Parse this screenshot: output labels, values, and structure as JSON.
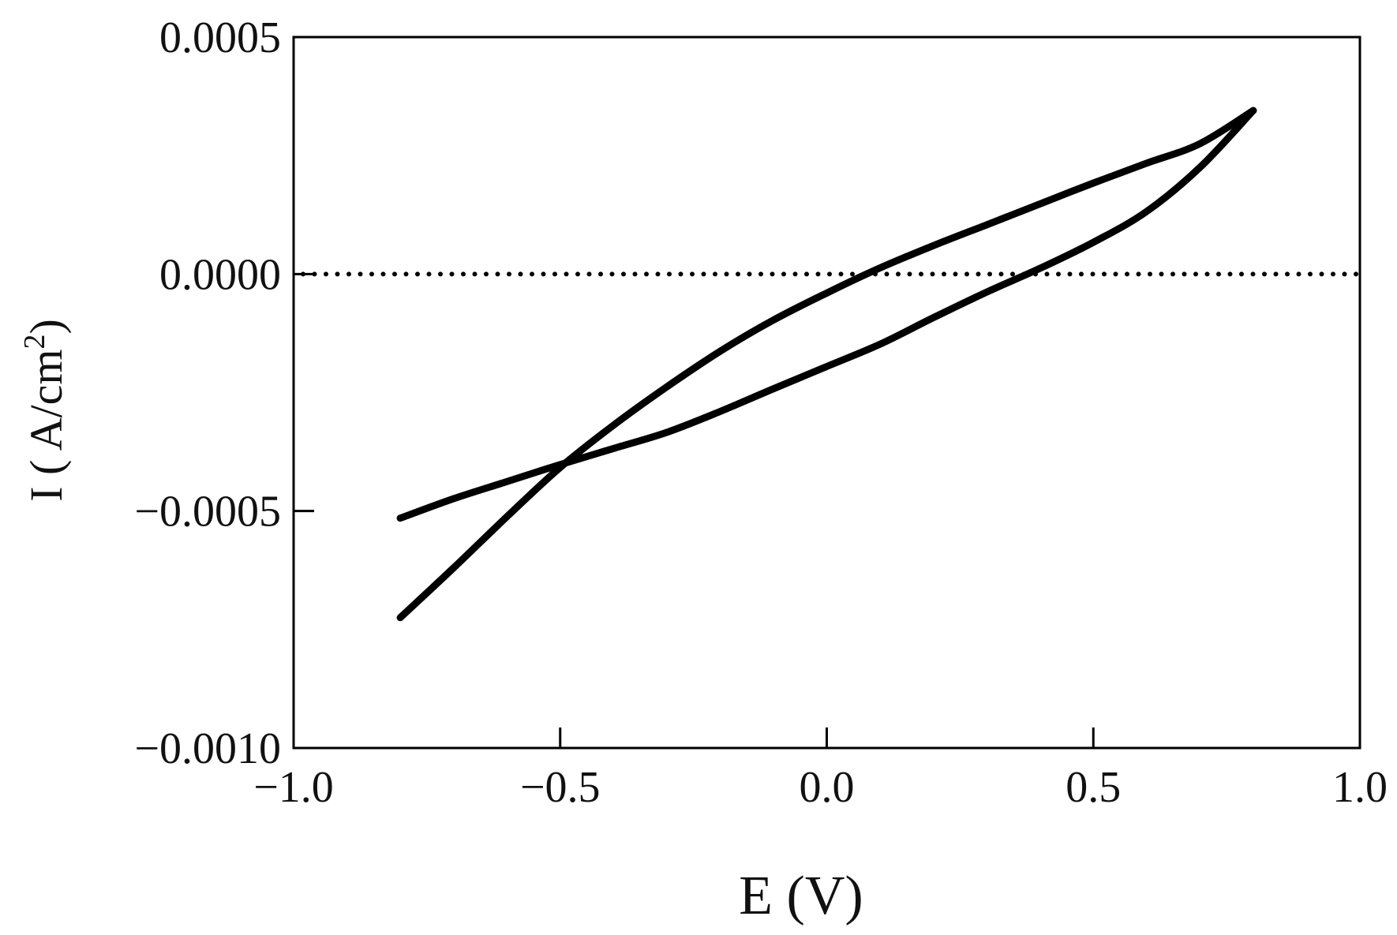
{
  "chart_data": {
    "type": "line",
    "title": "",
    "xlabel": "E (V)",
    "ylabel": "I ( A/cm",
    "ylabel_superscript": "2",
    "ylabel_close": ")",
    "xlim": [
      -1.0,
      1.0
    ],
    "ylim": [
      -0.001,
      0.0005
    ],
    "x_ticks": [
      -1.0,
      -0.5,
      0.0,
      0.5,
      1.0
    ],
    "x_tick_labels": [
      "−1.0",
      "−0.5",
      "0.0",
      "0.5",
      "1.0"
    ],
    "y_ticks": [
      0.0005,
      0.0,
      -0.0005,
      -0.001
    ],
    "y_tick_labels": [
      "0.0005",
      "0.0000",
      "−0.0005",
      "−0.0010"
    ],
    "grid": false,
    "reference_lines": [
      {
        "axis": "y",
        "value": 0.0,
        "style": "dotted"
      }
    ],
    "series": [
      {
        "segment": "forward-scan",
        "x": [
          -0.8,
          -0.7,
          -0.6,
          -0.5,
          -0.4,
          -0.3,
          -0.2,
          -0.1,
          0.0,
          0.1,
          0.2,
          0.3,
          0.4,
          0.5,
          0.6,
          0.7,
          0.8
        ],
        "y": [
          -0.000725,
          -0.00062,
          -0.000512,
          -0.000408,
          -0.000319,
          -0.000238,
          -0.000163,
          -9.7e-05,
          -4e-05,
          1.3e-05,
          6e-05,
          0.000104,
          0.000148,
          0.000192,
          0.000234,
          0.000275,
          0.000345
        ]
      },
      {
        "segment": "reverse-scan",
        "x": [
          0.8,
          0.7,
          0.6,
          0.5,
          0.4,
          0.3,
          0.2,
          0.1,
          0.0,
          -0.1,
          -0.2,
          -0.3,
          -0.4,
          -0.5,
          -0.6,
          -0.7,
          -0.8
        ],
        "y": [
          0.000345,
          0.000225,
          0.000132,
          6.7e-05,
          1.2e-05,
          -3.8e-05,
          -9.2e-05,
          -0.000148,
          -0.000195,
          -0.000242,
          -0.00029,
          -0.000334,
          -0.000368,
          -0.000402,
          -0.000438,
          -0.000474,
          -0.000515
        ]
      }
    ]
  }
}
